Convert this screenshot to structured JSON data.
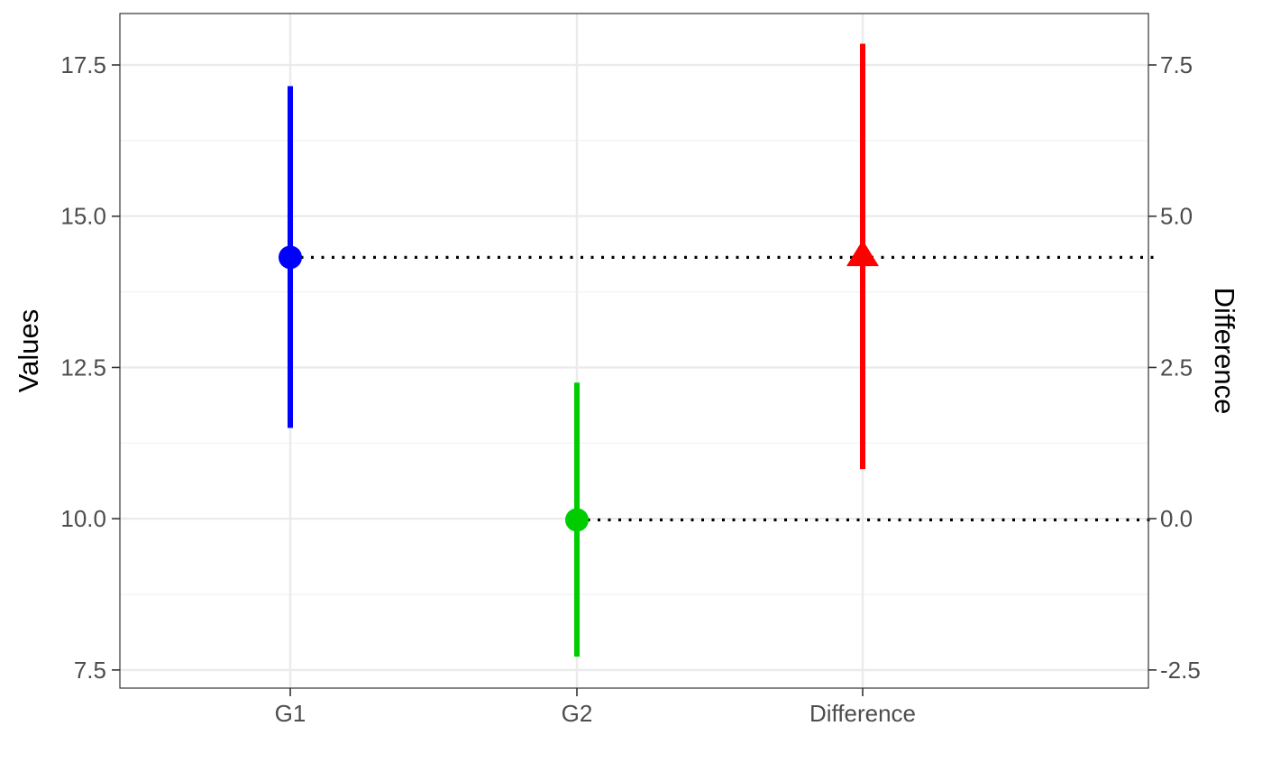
{
  "chart_data": {
    "type": "scatter",
    "categories": [
      "G1",
      "G2",
      "Difference"
    ],
    "ylabel": "Values",
    "y2label": "Difference",
    "ylim": [
      7.2,
      18.35
    ],
    "y2lim": [
      -2.8,
      8.35
    ],
    "y_ticks": [
      7.5,
      10.0,
      12.5,
      15.0,
      17.5
    ],
    "y_tick_labels": [
      "7.5",
      "10.0",
      "12.5",
      "15.0",
      "17.5"
    ],
    "y2_ticks": [
      -2.5,
      0.0,
      2.5,
      5.0,
      7.5
    ],
    "y2_tick_labels": [
      "-2.5",
      "0.0",
      "2.5",
      "5.0",
      "7.5"
    ],
    "grid": true,
    "points": [
      {
        "category": "G1",
        "axis": "left",
        "value": 14.32,
        "lower": 11.5,
        "upper": 17.15,
        "shape": "circle",
        "color": "#0000ff"
      },
      {
        "category": "G2",
        "axis": "left",
        "value": 9.98,
        "lower": 7.72,
        "upper": 12.25,
        "shape": "circle",
        "color": "#00cd00"
      },
      {
        "category": "Difference",
        "axis": "right",
        "value": 4.34,
        "lower": 0.82,
        "upper": 7.85,
        "shape": "triangle",
        "color": "#ff0000"
      }
    ],
    "reference_lines": [
      {
        "from_category": "G1",
        "value": 14.32,
        "style": "dotted",
        "color": "#000000"
      },
      {
        "from_category": "G2",
        "value": 9.98,
        "style": "dotted",
        "color": "#000000"
      }
    ]
  }
}
